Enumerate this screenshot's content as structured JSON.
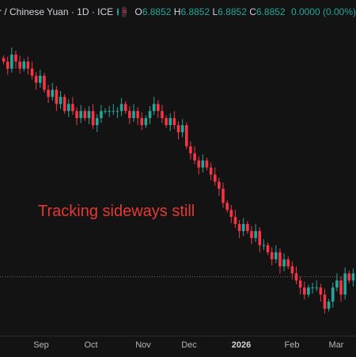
{
  "legend": {
    "title": "r / Chinese Yuan · 1D · ICE",
    "badge_icon": "wave-icon",
    "badge_glyph": "≈",
    "ohlc": {
      "o_label": "O",
      "o": "6.8852",
      "h_label": "H",
      "h": "6.8852",
      "l_label": "L",
      "l": "6.8852",
      "c_label": "C",
      "c": "6.8852",
      "change": "0.0000 (0.00%)"
    },
    "up_color": "#26a69a",
    "down_color": "#f23645"
  },
  "annotation": "Tracking sideways still",
  "chart_data": {
    "type": "candlestick",
    "title": "",
    "xlabel": "",
    "ylabel": "",
    "grid": false,
    "x_ticks": [
      {
        "label": "Sep",
        "bold": false
      },
      {
        "label": "Oct",
        "bold": false
      },
      {
        "label": "Nov",
        "bold": false
      },
      {
        "label": "Dec",
        "bold": false
      },
      {
        "label": "2026",
        "bold": true
      },
      {
        "label": "Feb",
        "bold": false
      },
      {
        "label": "Mar",
        "bold": false
      }
    ],
    "last_price": 6.8852,
    "ylim": [
      6.84,
      7.21
    ],
    "close_series": [
      7.19,
      7.18,
      7.2,
      7.19,
      7.18,
      7.19,
      7.18,
      7.17,
      7.16,
      7.17,
      7.15,
      7.14,
      7.15,
      7.13,
      7.14,
      7.12,
      7.13,
      7.12,
      7.11,
      7.12,
      7.11,
      7.12,
      7.1,
      7.11,
      7.12,
      7.12,
      7.12,
      7.12,
      7.12,
      7.13,
      7.12,
      7.11,
      7.12,
      7.11,
      7.1,
      7.11,
      7.12,
      7.13,
      7.12,
      7.11,
      7.1,
      7.11,
      7.1,
      7.09,
      7.1,
      7.07,
      7.06,
      7.05,
      7.04,
      7.05,
      7.04,
      7.03,
      7.02,
      7.01,
      6.99,
      6.98,
      6.97,
      6.96,
      6.95,
      6.96,
      6.95,
      6.94,
      6.95,
      6.93,
      6.93,
      6.92,
      6.91,
      6.92,
      6.9,
      6.91,
      6.9,
      6.89,
      6.88,
      6.87,
      6.86,
      6.87,
      6.87,
      6.87,
      6.86,
      6.84,
      6.85,
      6.87,
      6.88,
      6.86,
      6.89,
      6.88,
      6.89
    ]
  }
}
